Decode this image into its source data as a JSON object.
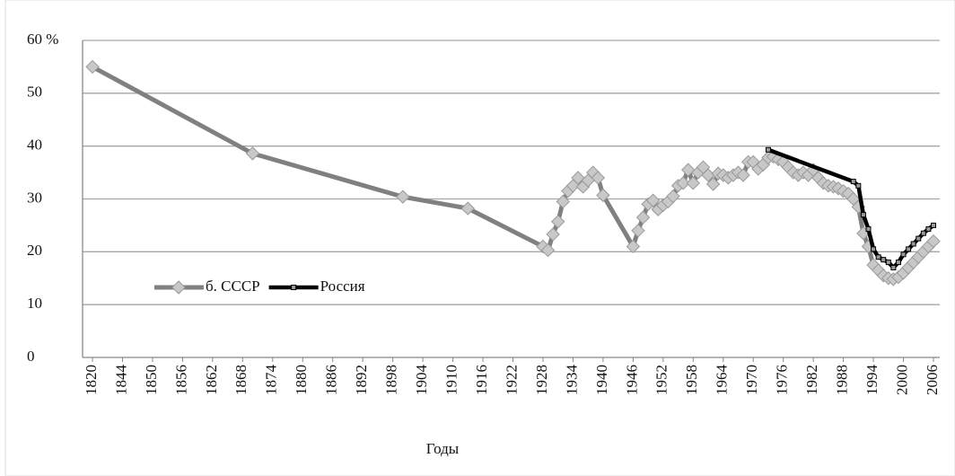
{
  "chart_data": {
    "type": "line",
    "xlabel": "Годы",
    "xticks": [
      1820,
      1844,
      1850,
      1856,
      1862,
      1868,
      1874,
      1880,
      1886,
      1892,
      1898,
      1904,
      1910,
      1916,
      1922,
      1928,
      1934,
      1940,
      1946,
      1952,
      1958,
      1964,
      1970,
      1976,
      1982,
      1988,
      1994,
      2000,
      2006
    ],
    "ylim": [
      0,
      60
    ],
    "yticks": [
      0,
      10,
      20,
      30,
      40,
      50,
      {
        "value": 60,
        "label": "60 %"
      }
    ],
    "grid": true,
    "legend": "left",
    "series": [
      {
        "name": "б. СССР",
        "color": "#808080",
        "x": [
          1820,
          1870,
          1900,
          1913,
          1928,
          1929,
          1930,
          1931,
          1932,
          1933,
          1934,
          1935,
          1936,
          1937,
          1938,
          1939,
          1940,
          1946,
          1947,
          1948,
          1949,
          1950,
          1951,
          1952,
          1953,
          1954,
          1955,
          1956,
          1957,
          1958,
          1959,
          1960,
          1961,
          1962,
          1963,
          1964,
          1965,
          1966,
          1967,
          1968,
          1969,
          1970,
          1971,
          1972,
          1973,
          1974,
          1975,
          1976,
          1977,
          1978,
          1979,
          1980,
          1981,
          1982,
          1983,
          1984,
          1985,
          1986,
          1987,
          1988,
          1989,
          1990,
          1991,
          1992,
          1993,
          1994,
          1995,
          1996,
          1997,
          1998,
          1999,
          2000,
          2001,
          2002,
          2003,
          2004,
          2005,
          2006
        ],
        "values": [
          55,
          38.6,
          30.4,
          28.2,
          21,
          20.3,
          23.3,
          25.7,
          29.5,
          31.5,
          32.5,
          34,
          32.3,
          33.5,
          35,
          34,
          30.7,
          21,
          24,
          26.5,
          29,
          29.7,
          28,
          28.8,
          29.5,
          30.5,
          32.5,
          33,
          35.5,
          33,
          35,
          36,
          34.5,
          32.8,
          34.8,
          34.5,
          34,
          34.5,
          35,
          34.5,
          37,
          37,
          35.7,
          36.5,
          37.8,
          38,
          37.5,
          37,
          36,
          35,
          34.5,
          35,
          34.5,
          35.5,
          34,
          33,
          32.5,
          32.3,
          32,
          31.5,
          31,
          30,
          28.5,
          23.5,
          21,
          17.5,
          16.5,
          15.5,
          15,
          14.8,
          15.2,
          16,
          17,
          18,
          19,
          20,
          21,
          22
        ]
      },
      {
        "name": "Россия",
        "color": "#000000",
        "x": [
          1973,
          1990,
          1991,
          1992,
          1993,
          1994,
          1995,
          1996,
          1997,
          1998,
          1999,
          2000,
          2001,
          2002,
          2003,
          2004,
          2005,
          2006
        ],
        "values": [
          39.3,
          33.3,
          32.5,
          27,
          24.3,
          20.5,
          19,
          18.5,
          18,
          17,
          18,
          19.5,
          20.5,
          21.5,
          22.5,
          23.5,
          24.3,
          25
        ]
      }
    ]
  }
}
